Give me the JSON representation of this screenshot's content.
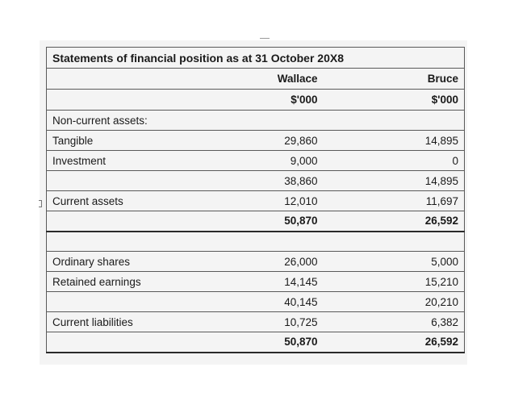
{
  "statement": {
    "title": "Statements of financial position as at 31 October 20X8",
    "columns": [
      {
        "name": "Wallace",
        "unit": "$'000"
      },
      {
        "name": "Bruce",
        "unit": "$'000"
      }
    ],
    "rows": [
      {
        "label": "Non-current assets:",
        "wallace": "",
        "bruce": ""
      },
      {
        "label": "Tangible",
        "wallace": "29,860",
        "bruce": "14,895"
      },
      {
        "label": "Investment",
        "wallace": "9,000",
        "bruce": "0"
      },
      {
        "label": "",
        "wallace": "38,860",
        "bruce": "14,895"
      },
      {
        "label": "Current assets",
        "wallace": "12,010",
        "bruce": "11,697"
      },
      {
        "label": "",
        "wallace": "50,870",
        "bruce": "26,592"
      },
      {
        "label": "",
        "wallace": "",
        "bruce": ""
      },
      {
        "label": "Ordinary shares",
        "wallace": "26,000",
        "bruce": "5,000"
      },
      {
        "label": "Retained earnings",
        "wallace": "14,145",
        "bruce": "15,210"
      },
      {
        "label": "",
        "wallace": "40,145",
        "bruce": "20,210"
      },
      {
        "label": "Current liabilities",
        "wallace": "10,725",
        "bruce": "6,382"
      },
      {
        "label": "",
        "wallace": "50,870",
        "bruce": "26,592"
      }
    ]
  }
}
